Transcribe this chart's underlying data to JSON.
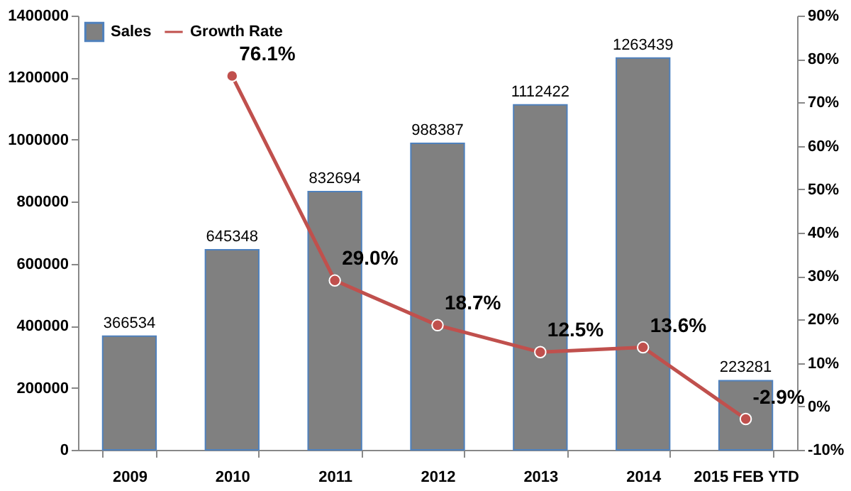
{
  "chart_data": {
    "type": "bar",
    "categories": [
      "2009",
      "2010",
      "2011",
      "2012",
      "2013",
      "2014",
      "2015 FEB YTD"
    ],
    "series": [
      {
        "name": "Sales",
        "color": "#808080",
        "values": [
          366534,
          645348,
          832694,
          988387,
          1112422,
          1263439,
          223281
        ],
        "value_labels": [
          "366534",
          "645348",
          "832694",
          "988387",
          "1112422",
          "1263439",
          "223281"
        ]
      },
      {
        "name": "Growth Rate",
        "type": "line",
        "axis": "y2",
        "color": "#c0504d",
        "marker": "circle",
        "values": [
          null,
          76.1,
          29.0,
          18.7,
          12.5,
          13.6,
          -2.9
        ],
        "value_labels": [
          null,
          "76.1%",
          "29.0%",
          "18.7%",
          "12.5%",
          "13.6%",
          "-2.9%"
        ]
      }
    ],
    "ylim": [
      0,
      1400000
    ],
    "yticks": [
      0,
      200000,
      400000,
      600000,
      800000,
      1000000,
      1200000,
      1400000
    ],
    "y2lim": [
      -10,
      90
    ],
    "y2ticks": [
      {
        "value": -10,
        "label": "-10%"
      },
      {
        "value": 0,
        "label": "0%"
      },
      {
        "value": 10,
        "label": "10%"
      },
      {
        "value": 20,
        "label": "20%"
      },
      {
        "value": 30,
        "label": "30%"
      },
      {
        "value": 40,
        "label": "40%"
      },
      {
        "value": 50,
        "label": "50%"
      },
      {
        "value": 60,
        "label": "60%"
      },
      {
        "value": 70,
        "label": "70%"
      },
      {
        "value": 80,
        "label": "80%"
      },
      {
        "value": 90,
        "label": "90%"
      }
    ],
    "grid": false,
    "legend": "top left"
  }
}
